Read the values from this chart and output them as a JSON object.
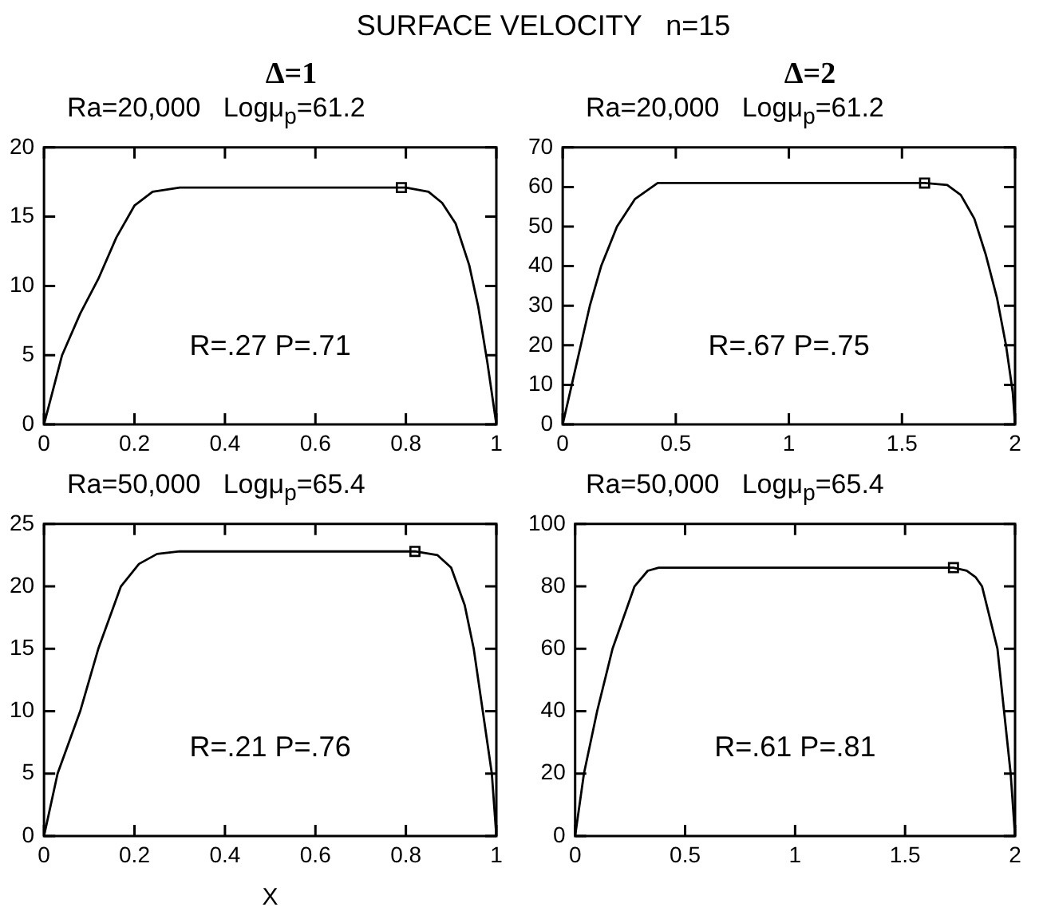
{
  "chart_data": [
    {
      "type": "line",
      "title": "SURFACE VELOCITY   n=15",
      "subtitle": "Δ=1",
      "annotations": [
        "Ra=20,000   Logμ$_{p}$=61.2",
        "R=.27 P=.71"
      ],
      "xlim": [
        0,
        1
      ],
      "xticks": [
        0,
        0.2,
        0.4,
        0.6,
        0.8,
        1
      ],
      "ylim": [
        0,
        20
      ],
      "yticks": [
        0,
        5,
        10,
        15,
        20
      ],
      "grid": false,
      "legend": false,
      "series": [
        {
          "color": "#000000",
          "marker": "none",
          "x": [
            0,
            0.02,
            0.04,
            0.08,
            0.12,
            0.16,
            0.2,
            0.24,
            0.3,
            0.5,
            0.8,
            0.85,
            0.88,
            0.91,
            0.94,
            0.96,
            0.98,
            1
          ],
          "values": [
            0,
            2.5,
            5,
            8,
            10.5,
            13.5,
            15.8,
            16.8,
            17.1,
            17.1,
            17.1,
            16.8,
            16,
            14.5,
            11.5,
            8.5,
            4.5,
            0
          ]
        },
        {
          "type": "scatter",
          "color": "#000000",
          "marker": "square",
          "x": [
            0.79
          ],
          "values": [
            17.1
          ]
        }
      ]
    },
    {
      "type": "line",
      "subtitle": "Δ=2",
      "annotations": [
        "Ra=20,000   Logμ$_{p}$=61.2",
        "R=.67 P=.75"
      ],
      "xlim": [
        0,
        2
      ],
      "xticks": [
        0,
        0.5,
        1,
        1.5,
        2
      ],
      "ylim": [
        0,
        70
      ],
      "yticks": [
        0,
        10,
        20,
        30,
        40,
        50,
        60,
        70
      ],
      "grid": false,
      "legend": false,
      "series": [
        {
          "color": "#000000",
          "marker": "none",
          "x": [
            0,
            0.04,
            0.08,
            0.12,
            0.17,
            0.24,
            0.32,
            0.42,
            1,
            1.6,
            1.7,
            1.76,
            1.82,
            1.87,
            1.92,
            1.96,
            1.99,
            2
          ],
          "values": [
            0,
            10,
            20,
            30,
            40,
            50,
            57,
            61,
            61,
            61,
            60.5,
            58,
            52,
            43,
            32,
            20,
            8,
            0
          ]
        },
        {
          "type": "scatter",
          "color": "#000000",
          "marker": "square",
          "x": [
            1.6
          ],
          "values": [
            61
          ]
        }
      ]
    },
    {
      "type": "line",
      "xlabel": "X",
      "annotations": [
        "Ra=50,000   Logμ$_{p}$=65.4",
        "R=.21 P=.76"
      ],
      "xlim": [
        0,
        1
      ],
      "xticks": [
        0,
        0.2,
        0.4,
        0.6,
        0.8,
        1
      ],
      "ylim": [
        0,
        25
      ],
      "yticks": [
        0,
        5,
        10,
        15,
        20,
        25
      ],
      "grid": false,
      "legend": false,
      "series": [
        {
          "color": "#000000",
          "marker": "none",
          "x": [
            0,
            0.03,
            0.08,
            0.12,
            0.17,
            0.21,
            0.25,
            0.3,
            0.5,
            0.82,
            0.87,
            0.9,
            0.93,
            0.95,
            0.97,
            0.99,
            1
          ],
          "values": [
            0,
            5,
            10,
            15,
            20,
            21.8,
            22.6,
            22.8,
            22.8,
            22.8,
            22.5,
            21.5,
            18.5,
            15,
            10,
            5,
            0
          ]
        },
        {
          "type": "scatter",
          "color": "#000000",
          "marker": "square",
          "x": [
            0.82
          ],
          "values": [
            22.8
          ]
        }
      ]
    },
    {
      "type": "line",
      "annotations": [
        "Ra=50,000   Logμ$_{p}$=65.4",
        "R=.61 P=.81"
      ],
      "xlim": [
        0,
        2
      ],
      "xticks": [
        0,
        0.5,
        1,
        1.5,
        2
      ],
      "ylim": [
        0,
        100
      ],
      "yticks": [
        0,
        20,
        40,
        60,
        80,
        100
      ],
      "grid": false,
      "legend": false,
      "series": [
        {
          "color": "#000000",
          "marker": "none",
          "x": [
            0,
            0.04,
            0.1,
            0.17,
            0.27,
            0.33,
            0.38,
            1,
            1.72,
            1.78,
            1.82,
            1.85,
            1.92,
            1.95,
            1.98,
            2
          ],
          "values": [
            0,
            20,
            40,
            60,
            80,
            85,
            86,
            86,
            86,
            85,
            83,
            80,
            60,
            40,
            20,
            0
          ]
        },
        {
          "type": "scatter",
          "color": "#000000",
          "marker": "square",
          "x": [
            1.72
          ],
          "values": [
            86
          ]
        }
      ]
    }
  ]
}
